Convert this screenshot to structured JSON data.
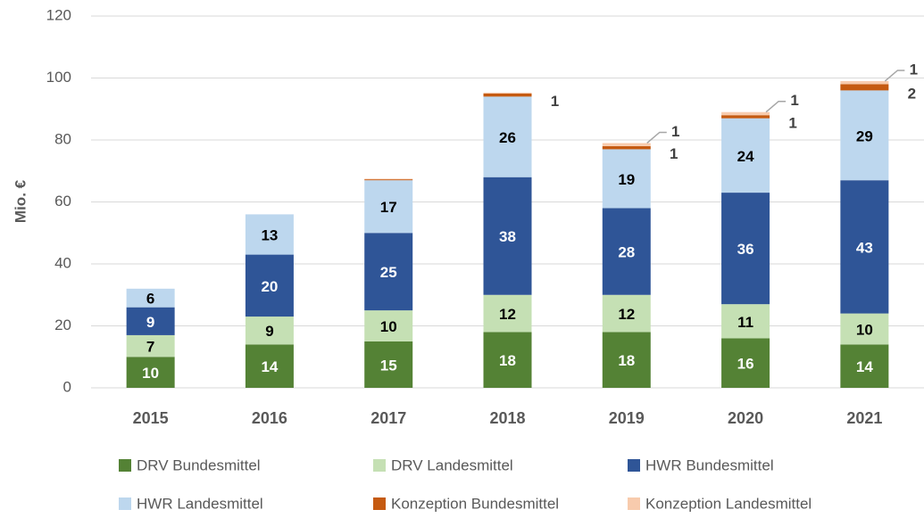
{
  "chart_data": {
    "type": "stacked_bar",
    "y_label": "Mio. €",
    "categories": [
      "2015",
      "2016",
      "2017",
      "2018",
      "2019",
      "2020",
      "2021"
    ],
    "series": [
      {
        "name": "DRV Bundesmittel",
        "color": "#548235",
        "values": [
          10,
          14,
          15,
          18,
          18,
          16,
          14
        ]
      },
      {
        "name": "DRV Landesmittel",
        "color": "#c5e0b4",
        "values": [
          7,
          9,
          10,
          12,
          12,
          11,
          10
        ]
      },
      {
        "name": "HWR Bundesmittel",
        "color": "#2f5597",
        "values": [
          9,
          20,
          25,
          38,
          28,
          36,
          43
        ]
      },
      {
        "name": "HWR Landesmittel",
        "color": "#bdd7ee",
        "values": [
          6,
          13,
          17,
          26,
          19,
          24,
          29
        ]
      },
      {
        "name": "Konzeption Bundesmittel",
        "color": "#c55a11",
        "values": [
          0,
          0,
          0.3,
          1,
          1,
          1,
          2
        ]
      },
      {
        "name": "Konzeption Landesmittel",
        "color": "#f8cbad",
        "values": [
          0,
          0,
          0.2,
          0.3,
          1,
          1,
          1
        ]
      }
    ],
    "ylim": [
      0,
      120
    ],
    "yticks": [
      0,
      20,
      40,
      60,
      80,
      100,
      120
    ],
    "grid": true
  }
}
